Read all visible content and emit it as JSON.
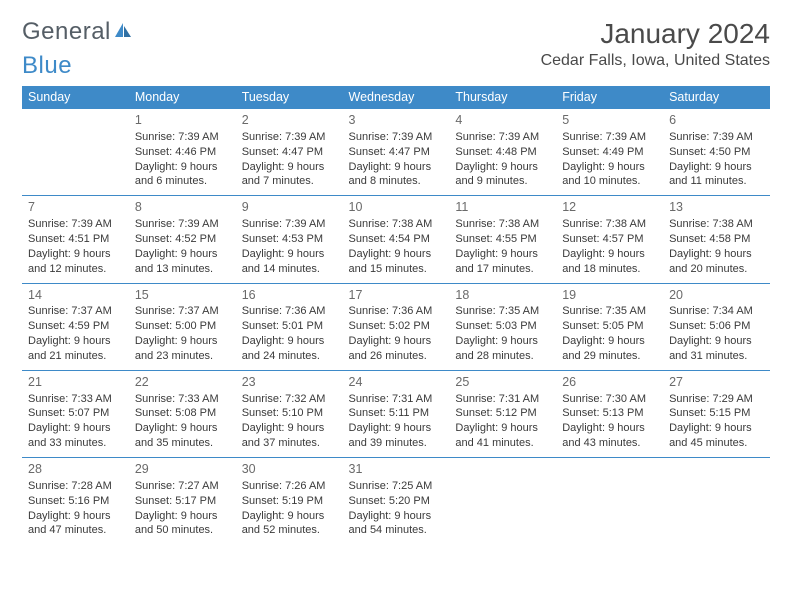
{
  "brand": {
    "text_a": "General",
    "text_b": "Blue"
  },
  "title": "January 2024",
  "location": "Cedar Falls, Iowa, United States",
  "colors": {
    "header_bg": "#3e8ac8",
    "header_text": "#ffffff",
    "cell_border": "#3e8ac8",
    "text": "#3a3a3a",
    "daynum": "#6a6a6a",
    "brand_gray": "#555e66",
    "brand_blue": "#3e8ac8"
  },
  "weekdays": [
    "Sunday",
    "Monday",
    "Tuesday",
    "Wednesday",
    "Thursday",
    "Friday",
    "Saturday"
  ],
  "layout": {
    "first_weekday_index": 1,
    "days_in_month": 31
  },
  "days": [
    {
      "n": 1,
      "sunrise": "7:39 AM",
      "sunset": "4:46 PM",
      "daylight": "9 hours and 6 minutes."
    },
    {
      "n": 2,
      "sunrise": "7:39 AM",
      "sunset": "4:47 PM",
      "daylight": "9 hours and 7 minutes."
    },
    {
      "n": 3,
      "sunrise": "7:39 AM",
      "sunset": "4:47 PM",
      "daylight": "9 hours and 8 minutes."
    },
    {
      "n": 4,
      "sunrise": "7:39 AM",
      "sunset": "4:48 PM",
      "daylight": "9 hours and 9 minutes."
    },
    {
      "n": 5,
      "sunrise": "7:39 AM",
      "sunset": "4:49 PM",
      "daylight": "9 hours and 10 minutes."
    },
    {
      "n": 6,
      "sunrise": "7:39 AM",
      "sunset": "4:50 PM",
      "daylight": "9 hours and 11 minutes."
    },
    {
      "n": 7,
      "sunrise": "7:39 AM",
      "sunset": "4:51 PM",
      "daylight": "9 hours and 12 minutes."
    },
    {
      "n": 8,
      "sunrise": "7:39 AM",
      "sunset": "4:52 PM",
      "daylight": "9 hours and 13 minutes."
    },
    {
      "n": 9,
      "sunrise": "7:39 AM",
      "sunset": "4:53 PM",
      "daylight": "9 hours and 14 minutes."
    },
    {
      "n": 10,
      "sunrise": "7:38 AM",
      "sunset": "4:54 PM",
      "daylight": "9 hours and 15 minutes."
    },
    {
      "n": 11,
      "sunrise": "7:38 AM",
      "sunset": "4:55 PM",
      "daylight": "9 hours and 17 minutes."
    },
    {
      "n": 12,
      "sunrise": "7:38 AM",
      "sunset": "4:57 PM",
      "daylight": "9 hours and 18 minutes."
    },
    {
      "n": 13,
      "sunrise": "7:38 AM",
      "sunset": "4:58 PM",
      "daylight": "9 hours and 20 minutes."
    },
    {
      "n": 14,
      "sunrise": "7:37 AM",
      "sunset": "4:59 PM",
      "daylight": "9 hours and 21 minutes."
    },
    {
      "n": 15,
      "sunrise": "7:37 AM",
      "sunset": "5:00 PM",
      "daylight": "9 hours and 23 minutes."
    },
    {
      "n": 16,
      "sunrise": "7:36 AM",
      "sunset": "5:01 PM",
      "daylight": "9 hours and 24 minutes."
    },
    {
      "n": 17,
      "sunrise": "7:36 AM",
      "sunset": "5:02 PM",
      "daylight": "9 hours and 26 minutes."
    },
    {
      "n": 18,
      "sunrise": "7:35 AM",
      "sunset": "5:03 PM",
      "daylight": "9 hours and 28 minutes."
    },
    {
      "n": 19,
      "sunrise": "7:35 AM",
      "sunset": "5:05 PM",
      "daylight": "9 hours and 29 minutes."
    },
    {
      "n": 20,
      "sunrise": "7:34 AM",
      "sunset": "5:06 PM",
      "daylight": "9 hours and 31 minutes."
    },
    {
      "n": 21,
      "sunrise": "7:33 AM",
      "sunset": "5:07 PM",
      "daylight": "9 hours and 33 minutes."
    },
    {
      "n": 22,
      "sunrise": "7:33 AM",
      "sunset": "5:08 PM",
      "daylight": "9 hours and 35 minutes."
    },
    {
      "n": 23,
      "sunrise": "7:32 AM",
      "sunset": "5:10 PM",
      "daylight": "9 hours and 37 minutes."
    },
    {
      "n": 24,
      "sunrise": "7:31 AM",
      "sunset": "5:11 PM",
      "daylight": "9 hours and 39 minutes."
    },
    {
      "n": 25,
      "sunrise": "7:31 AM",
      "sunset": "5:12 PM",
      "daylight": "9 hours and 41 minutes."
    },
    {
      "n": 26,
      "sunrise": "7:30 AM",
      "sunset": "5:13 PM",
      "daylight": "9 hours and 43 minutes."
    },
    {
      "n": 27,
      "sunrise": "7:29 AM",
      "sunset": "5:15 PM",
      "daylight": "9 hours and 45 minutes."
    },
    {
      "n": 28,
      "sunrise": "7:28 AM",
      "sunset": "5:16 PM",
      "daylight": "9 hours and 47 minutes."
    },
    {
      "n": 29,
      "sunrise": "7:27 AM",
      "sunset": "5:17 PM",
      "daylight": "9 hours and 50 minutes."
    },
    {
      "n": 30,
      "sunrise": "7:26 AM",
      "sunset": "5:19 PM",
      "daylight": "9 hours and 52 minutes."
    },
    {
      "n": 31,
      "sunrise": "7:25 AM",
      "sunset": "5:20 PM",
      "daylight": "9 hours and 54 minutes."
    }
  ],
  "labels": {
    "sunrise": "Sunrise:",
    "sunset": "Sunset:",
    "daylight": "Daylight:"
  }
}
